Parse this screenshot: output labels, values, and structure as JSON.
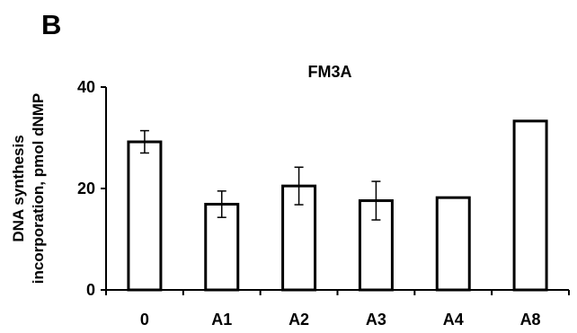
{
  "panel_label": "B",
  "chart_data": {
    "type": "bar",
    "title": "FM3A",
    "xlabel": "",
    "ylabel_lines": [
      "DNA synthesis",
      "incorporation, pmol dNMP"
    ],
    "categories": [
      "0",
      "A1",
      "A2",
      "A3",
      "A4",
      "A8"
    ],
    "values": [
      29.2,
      16.9,
      20.5,
      17.6,
      18.2,
      33.3
    ],
    "errors": [
      2.2,
      2.6,
      3.7,
      3.8,
      null,
      null
    ],
    "ylim": [
      0,
      40
    ],
    "yticks": [
      0,
      20,
      40
    ],
    "grid": false,
    "bar_fill": "#ffffff",
    "bar_stroke": "#000000"
  }
}
